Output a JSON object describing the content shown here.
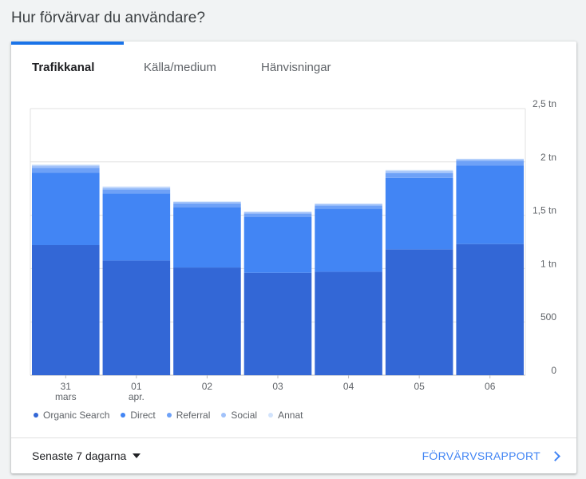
{
  "page_title": "Hur förvärvar du användare?",
  "tabs": [
    {
      "label": "Trafikkanal",
      "active": true
    },
    {
      "label": "Källa/medium",
      "active": false
    },
    {
      "label": "Hänvisningar",
      "active": false
    }
  ],
  "chart_data": {
    "type": "bar",
    "stacked": true,
    "categories": [
      "31 mars",
      "01 apr.",
      "02",
      "03",
      "04",
      "05",
      "06"
    ],
    "category_lines": [
      [
        "31",
        "mars"
      ],
      [
        "01",
        "apr."
      ],
      [
        "02"
      ],
      [
        "03"
      ],
      [
        "04"
      ],
      [
        "05"
      ],
      [
        "06"
      ]
    ],
    "series": [
      {
        "name": "Organic Search",
        "color": "#3367d6",
        "values": [
          1220,
          1075,
          1010,
          960,
          970,
          1180,
          1230
        ]
      },
      {
        "name": "Direct",
        "color": "#4285f4",
        "values": [
          680,
          630,
          565,
          525,
          590,
          670,
          735
        ]
      },
      {
        "name": "Referral",
        "color": "#6ea1f7",
        "values": [
          45,
          35,
          35,
          30,
          30,
          45,
          45
        ]
      },
      {
        "name": "Social",
        "color": "#a1c2fa",
        "values": [
          20,
          20,
          15,
          15,
          15,
          20,
          15
        ]
      },
      {
        "name": "Annat",
        "color": "#d2e3fc",
        "values": [
          10,
          10,
          5,
          5,
          5,
          10,
          5
        ]
      }
    ],
    "y_ticks": [
      0,
      500,
      1000,
      1500,
      2000,
      2500
    ],
    "y_tick_labels": [
      "0",
      "500",
      "1 tn",
      "1,5 tn",
      "2 tn",
      "2,5 tn"
    ],
    "ylim": [
      0,
      2500
    ],
    "grid": true,
    "legend_position": "bottom-left"
  },
  "footer": {
    "date_range": "Senaste 7 dagarna",
    "report_link": "FÖRVÄRVSRAPPORT"
  }
}
